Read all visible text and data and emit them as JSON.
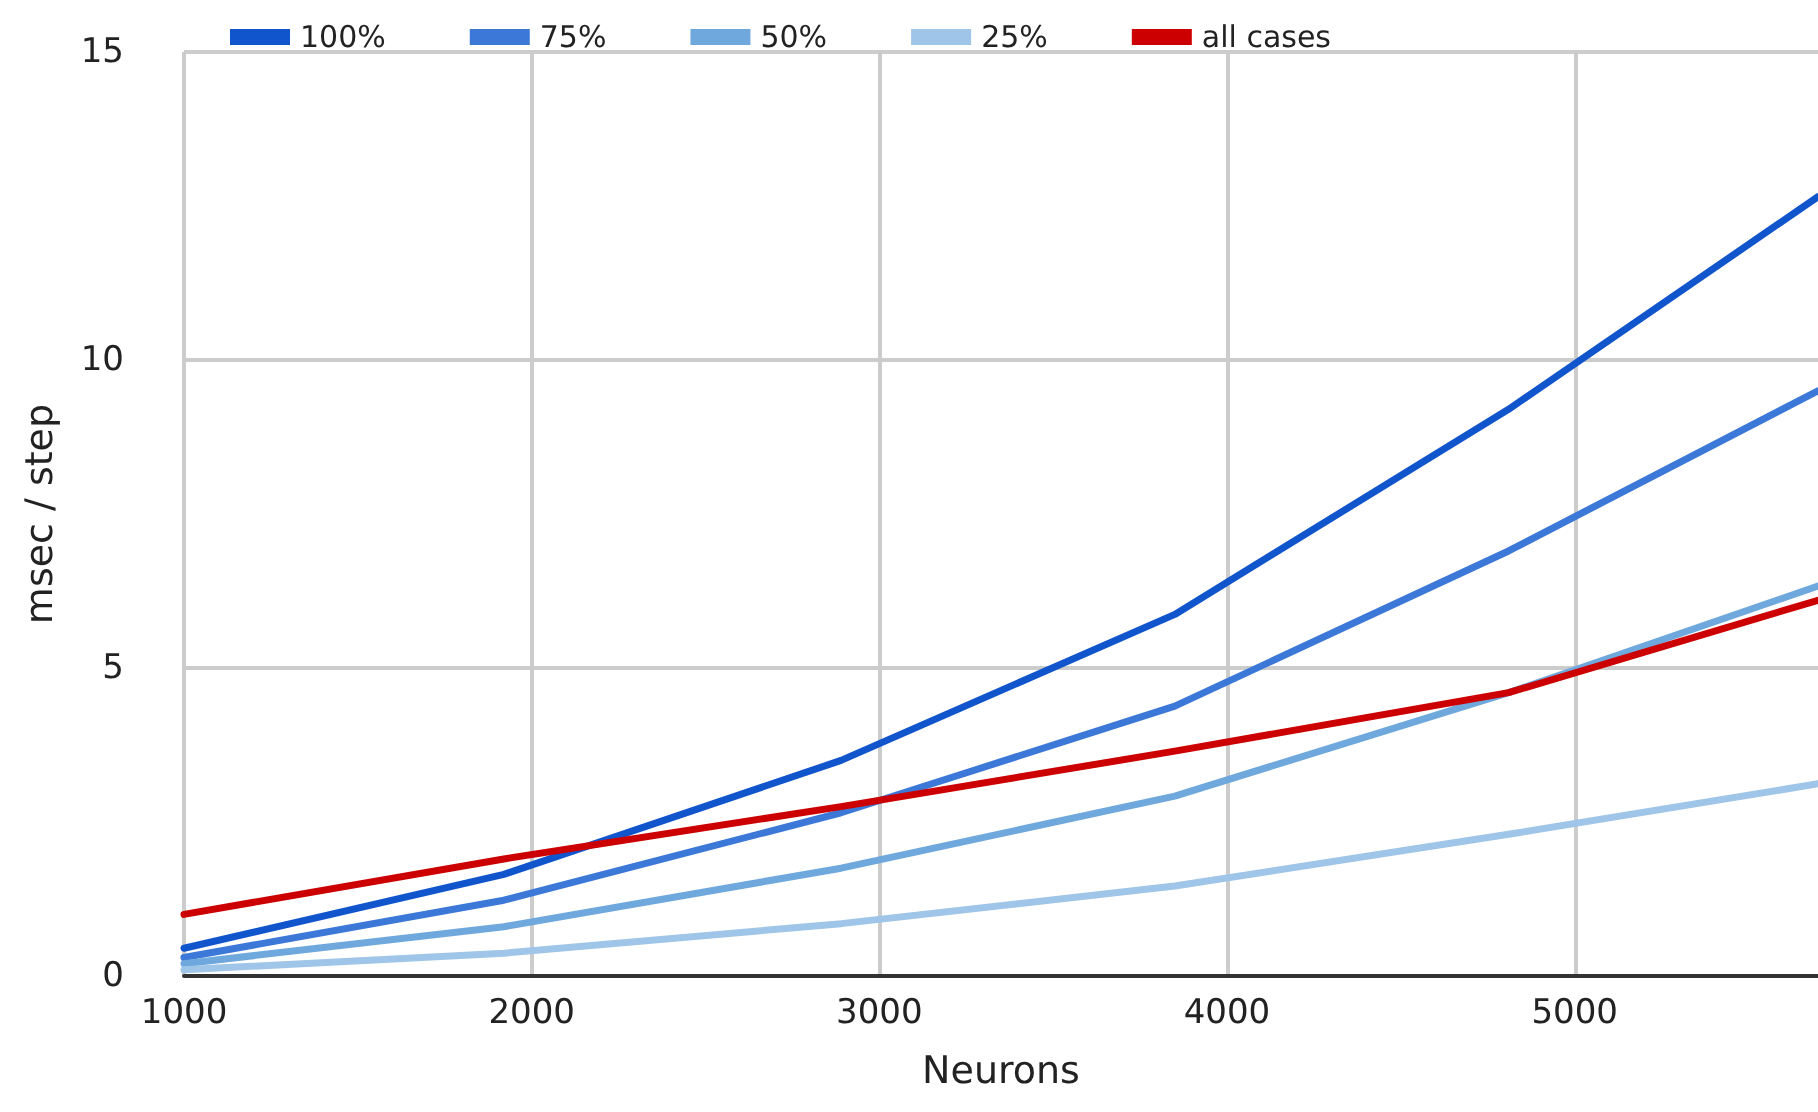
{
  "chart_data": {
    "type": "line",
    "xlabel": "Neurons",
    "ylabel": "msec / step",
    "x": [
      1000,
      1920,
      2890,
      3850,
      4810,
      5700
    ],
    "series": [
      {
        "name": "100%",
        "color": "#1155cc",
        "values": [
          0.45,
          1.65,
          3.5,
          5.87,
          9.2,
          12.65
        ]
      },
      {
        "name": "75%",
        "color": "#3c78d8",
        "values": [
          0.3,
          1.23,
          2.65,
          4.38,
          6.9,
          9.5
        ]
      },
      {
        "name": "50%",
        "color": "#6fa8dc",
        "values": [
          0.2,
          0.8,
          1.75,
          2.92,
          4.6,
          6.33
        ]
      },
      {
        "name": "25%",
        "color": "#9fc5e8",
        "values": [
          0.1,
          0.37,
          0.85,
          1.46,
          2.3,
          3.12
        ]
      },
      {
        "name": "all cases",
        "color": "#cc0000",
        "values": [
          1.0,
          1.9,
          2.75,
          3.65,
          4.6,
          6.1
        ]
      }
    ],
    "xlim": [
      1000,
      5700
    ],
    "xticks": [
      1000,
      2000,
      3000,
      4000,
      5000
    ],
    "ylim": [
      0,
      15
    ],
    "yticks": [
      0,
      5,
      10,
      15
    ],
    "grid": true,
    "legend": "top",
    "marker": "none",
    "line_style": "solid"
  }
}
